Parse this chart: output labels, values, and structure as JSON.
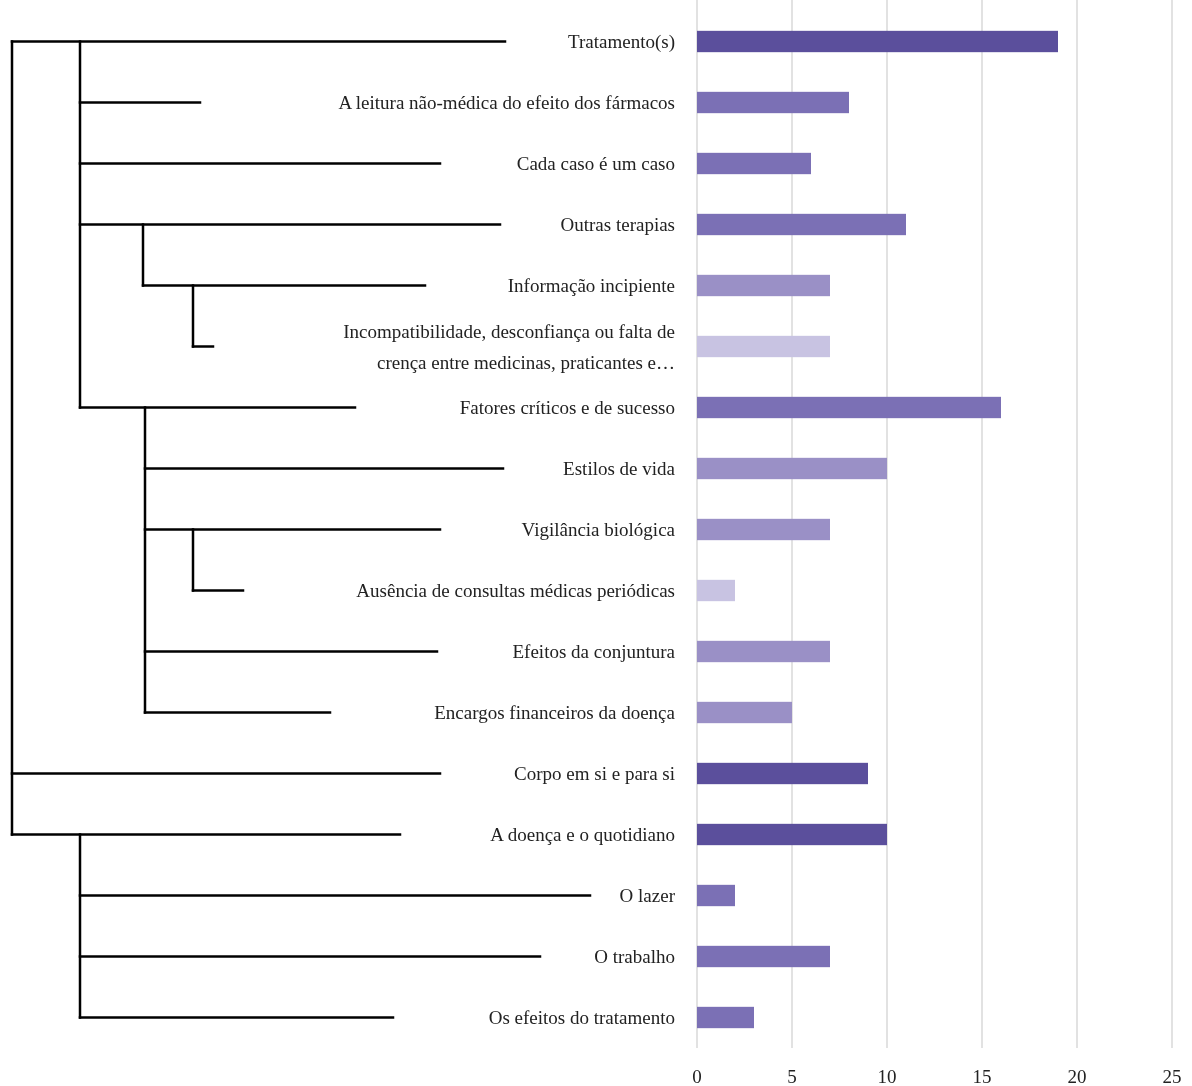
{
  "chart_data": {
    "type": "bar",
    "orientation": "horizontal",
    "categories": [
      "Tratamento(s)",
      "A leitura não-médica do efeito dos fármacos",
      "Cada caso é um caso",
      "Outras terapias",
      "Informação incipiente",
      "Incompatibilidade, desconfiança ou falta de crença entre medicinas, praticantes e…",
      "Fatores críticos e de sucesso",
      "Estilos de vida",
      "Vigilância biológica",
      "Ausência de consultas médicas periódicas",
      "Efeitos da conjuntura",
      "Encargos financeiros da doença",
      "Corpo em si e para si",
      "A doença e o quotidiano",
      "O lazer",
      "O trabalho",
      "Os efeitos do tratamento"
    ],
    "values": [
      19,
      8,
      6,
      11,
      7,
      7,
      16,
      10,
      7,
      2,
      7,
      5,
      9,
      10,
      2,
      7,
      3
    ],
    "colors": [
      "#5b4f9c",
      "#7b70b5",
      "#7b70b5",
      "#7b70b5",
      "#9a90c6",
      "#c8c3e2",
      "#7b70b5",
      "#9a90c6",
      "#9a90c6",
      "#c8c3e2",
      "#9a90c6",
      "#9a90c6",
      "#5b4f9c",
      "#5b4f9c",
      "#7b70b5",
      "#7b70b5",
      "#7b70b5"
    ],
    "xlim": [
      0,
      25
    ],
    "xticks": [
      0,
      5,
      10,
      15,
      20,
      25
    ],
    "grid": "x"
  }
}
